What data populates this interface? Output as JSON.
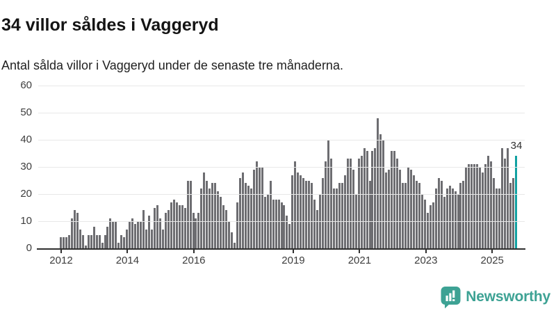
{
  "header": {
    "title": "34 villor såldes i Vaggeryd",
    "subtitle": "Antal sålda villor i Vaggeryd under de senaste tre månaderna."
  },
  "chart_data": {
    "type": "bar",
    "title": "34 villor såldes i Vaggeryd",
    "subtitle": "Antal sålda villor i Vaggeryd under de senaste tre månaderna.",
    "xlabel": "",
    "ylabel": "",
    "ylim": [
      0,
      60
    ],
    "yticks": [
      0,
      10,
      20,
      30,
      40,
      50,
      60
    ],
    "grid": true,
    "x_start_year": 2012,
    "xtick_years": [
      "2012",
      "2014",
      "2016",
      "2019",
      "2021",
      "2023",
      "2025"
    ],
    "values": [
      4,
      4,
      4,
      5,
      11,
      14,
      13,
      7,
      5,
      1,
      5,
      5,
      8,
      5,
      5,
      2,
      5,
      8,
      11,
      10,
      10,
      2,
      5,
      4,
      7,
      10,
      11,
      9,
      10,
      10,
      14,
      7,
      12,
      7,
      15,
      16,
      11,
      7,
      13,
      14,
      17,
      18,
      17,
      16,
      16,
      15,
      25,
      25,
      13,
      11,
      13,
      22,
      28,
      25,
      22,
      24,
      24,
      21,
      19,
      16,
      14,
      10,
      6,
      2,
      17,
      26,
      28,
      24,
      23,
      22,
      29,
      32,
      30,
      30,
      19,
      20,
      25,
      18,
      18,
      18,
      17,
      16,
      12,
      9,
      27,
      32,
      28,
      27,
      26,
      25,
      25,
      24,
      18,
      14,
      20,
      26,
      32,
      40,
      33,
      22,
      22,
      24,
      24,
      27,
      33,
      33,
      29,
      20,
      33,
      34,
      37,
      36,
      25,
      36,
      37,
      48,
      42,
      40,
      28,
      29,
      36,
      36,
      33,
      29,
      24,
      24,
      30,
      29,
      27,
      25,
      24,
      20,
      18,
      13,
      16,
      17,
      22,
      26,
      25,
      19,
      22,
      23,
      22,
      21,
      20,
      24,
      25,
      30,
      31,
      31,
      31,
      31,
      30,
      28,
      31,
      34,
      32,
      26,
      22,
      22,
      37,
      33,
      37,
      24,
      26,
      34
    ],
    "highlight_last": true,
    "last_value_label": "34",
    "bar_color": "#6d6d71",
    "highlight_color": "#11a1a2"
  },
  "logo": {
    "text": "Newsworthy",
    "color": "#3da294",
    "icon": "bar-chart-speech-bubble"
  }
}
